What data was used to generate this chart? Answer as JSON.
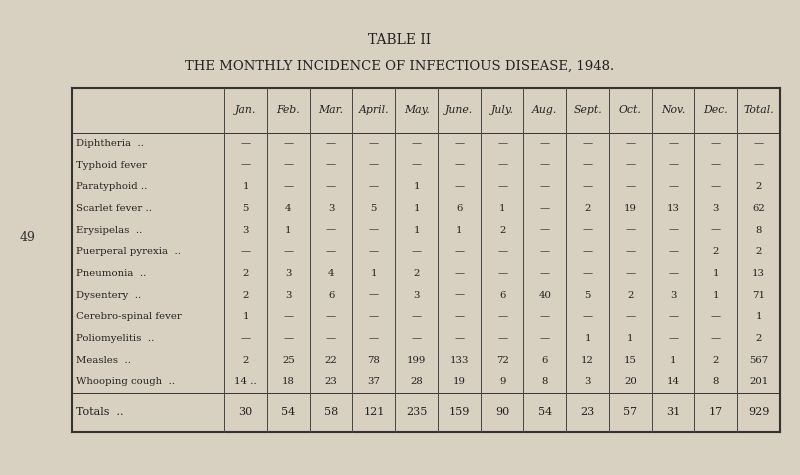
{
  "title1": "TABLE II",
  "title2": "THE MONTHLY INCIDENCE OF INFECTIOUS DISEASE, 1948.",
  "bg_color": "#d8d0c0",
  "page_num": "49",
  "col_headers": [
    "Jan.",
    "Feb.",
    "Mar.",
    "April.",
    "May.",
    "June.",
    "July.",
    "Aug.",
    "Sept.",
    "Oct.",
    "Nov.",
    "Dec.",
    "Total."
  ],
  "row_labels": [
    "Diphtheria  ..",
    "Typhoid fever",
    "Paratyphoid ..",
    "Scarlet fever ..",
    "Erysipelas  ..",
    "Puerperal pyrexia  ..",
    "Pneumonia  ..",
    "Dysentery  ..",
    "Cerebro-spinal fever",
    "Poliomyelitis  ..",
    "Measles  ..",
    "Whooping cough  .."
  ],
  "data": [
    [
      "—",
      "—",
      "—",
      "—",
      "—",
      "—",
      "—",
      "—",
      "—",
      "—",
      "—",
      "—",
      "—"
    ],
    [
      "—",
      "—",
      "—",
      "—",
      "—",
      "—",
      "—",
      "—",
      "—",
      "—",
      "—",
      "—",
      "—"
    ],
    [
      "1",
      "—",
      "—",
      "—",
      "1",
      "—",
      "—",
      "—",
      "—",
      "—",
      "—",
      "—",
      "2"
    ],
    [
      "5",
      "4",
      "3",
      "5",
      "1",
      "6",
      "1",
      "—",
      "2",
      "19",
      "13",
      "3",
      "62"
    ],
    [
      "3",
      "1",
      "—",
      "—",
      "1",
      "1",
      "2",
      "—",
      "—",
      "—",
      "—",
      "—",
      "8"
    ],
    [
      "—",
      "—",
      "—",
      "—",
      "—",
      "—",
      "—",
      "—",
      "—",
      "—",
      "—",
      "2",
      "2"
    ],
    [
      "2",
      "3",
      "4",
      "1",
      "2",
      "—",
      "—",
      "—",
      "—",
      "—",
      "—",
      "1",
      "13"
    ],
    [
      "2",
      "3",
      "6",
      "—",
      "3",
      "—",
      "6",
      "40",
      "5",
      "2",
      "3",
      "1",
      "71"
    ],
    [
      "1",
      "—",
      "—",
      "—",
      "—",
      "—",
      "—",
      "—",
      "—",
      "—",
      "—",
      "—",
      "1"
    ],
    [
      "—",
      "—",
      "—",
      "—",
      "—",
      "—",
      "—",
      "—",
      "1",
      "1",
      "—",
      "—",
      "2"
    ],
    [
      "2",
      "25",
      "22",
      "78",
      "199",
      "133",
      "72",
      "6",
      "12",
      "15",
      "1",
      "2",
      "567"
    ],
    [
      "14 ..",
      "18",
      "23",
      "37",
      "28",
      "19",
      "9",
      "8",
      "3",
      "20",
      "14",
      "8",
      "201"
    ]
  ],
  "totals_label": "Totals  ..",
  "totals_row": [
    "30",
    "54",
    "58",
    "121",
    "235",
    "159",
    "90",
    "54",
    "23",
    "57",
    "31",
    "17",
    "929"
  ]
}
